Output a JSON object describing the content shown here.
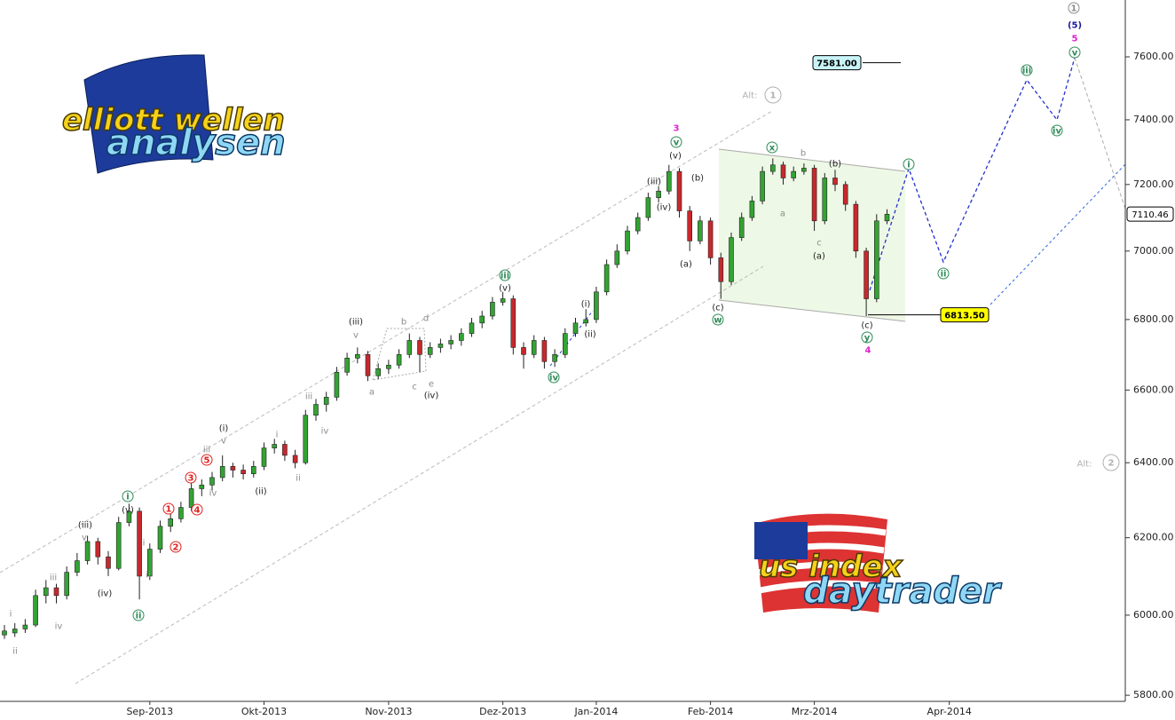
{
  "chart_data": {
    "type": "candlestick",
    "categories": [
      null,
      null,
      null,
      null,
      null,
      null,
      null,
      null,
      null,
      null,
      null,
      null,
      null,
      null,
      "Sep-2013",
      null,
      null,
      null,
      null,
      null,
      null,
      null,
      null,
      null,
      null,
      "Okt-2013",
      null,
      null,
      null,
      null,
      null,
      null,
      null,
      null,
      null,
      null,
      null,
      "Nov-2013",
      null,
      null,
      null,
      null,
      null,
      null,
      null,
      null,
      null,
      null,
      "Dez-2013",
      null,
      null,
      null,
      null,
      null,
      null,
      null,
      null,
      "Jan-2014",
      null,
      null,
      null,
      null,
      null,
      null,
      null,
      null,
      null,
      null,
      "Feb-2014",
      null,
      null,
      null,
      null,
      null,
      null,
      null,
      null,
      null,
      "Mrz-2014",
      null,
      null,
      null,
      null,
      null,
      null,
      null,
      null,
      null,
      null,
      null,
      null,
      "Apr-2014"
    ],
    "ohlc": [
      [
        5950,
        5975,
        5940,
        5960
      ],
      [
        5955,
        5980,
        5945,
        5965
      ],
      [
        5965,
        5990,
        5955,
        5975
      ],
      [
        5975,
        6065,
        5970,
        6050
      ],
      [
        6050,
        6090,
        6030,
        6070
      ],
      [
        6070,
        6080,
        6030,
        6050
      ],
      [
        6050,
        6125,
        6040,
        6110
      ],
      [
        6110,
        6160,
        6100,
        6140
      ],
      [
        6140,
        6205,
        6130,
        6190
      ],
      [
        6190,
        6200,
        6130,
        6150
      ],
      [
        6150,
        6165,
        6100,
        6120
      ],
      [
        6120,
        6255,
        6115,
        6240
      ],
      [
        6240,
        6290,
        6230,
        6270
      ],
      [
        6270,
        6280,
        6040,
        6100
      ],
      [
        6100,
        6185,
        6090,
        6170
      ],
      [
        6170,
        6245,
        6160,
        6230
      ],
      [
        6230,
        6265,
        6215,
        6250
      ],
      [
        6250,
        6295,
        6240,
        6280
      ],
      [
        6280,
        6345,
        6270,
        6330
      ],
      [
        6330,
        6355,
        6310,
        6340
      ],
      [
        6340,
        6375,
        6325,
        6360
      ],
      [
        6360,
        6420,
        6350,
        6390
      ],
      [
        6390,
        6400,
        6360,
        6380
      ],
      [
        6380,
        6395,
        6355,
        6370
      ],
      [
        6370,
        6405,
        6360,
        6390
      ],
      [
        6390,
        6455,
        6380,
        6440
      ],
      [
        6440,
        6465,
        6425,
        6450
      ],
      [
        6450,
        6460,
        6405,
        6420
      ],
      [
        6420,
        6435,
        6385,
        6400
      ],
      [
        6400,
        6545,
        6395,
        6530
      ],
      [
        6530,
        6575,
        6515,
        6560
      ],
      [
        6560,
        6595,
        6540,
        6580
      ],
      [
        6580,
        6665,
        6570,
        6650
      ],
      [
        6650,
        6705,
        6640,
        6690
      ],
      [
        6690,
        6720,
        6675,
        6700
      ],
      [
        6700,
        6710,
        6625,
        6640
      ],
      [
        6640,
        6675,
        6630,
        6660
      ],
      [
        6660,
        6685,
        6645,
        6670
      ],
      [
        6670,
        6715,
        6660,
        6700
      ],
      [
        6700,
        6760,
        6690,
        6740
      ],
      [
        6740,
        6750,
        6650,
        6700
      ],
      [
        6700,
        6735,
        6690,
        6720
      ],
      [
        6720,
        6745,
        6705,
        6730
      ],
      [
        6730,
        6755,
        6715,
        6740
      ],
      [
        6740,
        6775,
        6725,
        6760
      ],
      [
        6760,
        6805,
        6750,
        6790
      ],
      [
        6790,
        6825,
        6775,
        6810
      ],
      [
        6810,
        6865,
        6800,
        6850
      ],
      [
        6850,
        6880,
        6840,
        6860
      ],
      [
        6860,
        6870,
        6700,
        6720
      ],
      [
        6720,
        6735,
        6660,
        6700
      ],
      [
        6700,
        6755,
        6690,
        6740
      ],
      [
        6740,
        6750,
        6660,
        6680
      ],
      [
        6680,
        6715,
        6665,
        6700
      ],
      [
        6700,
        6775,
        6690,
        6760
      ],
      [
        6760,
        6805,
        6750,
        6790
      ],
      [
        6790,
        6830,
        6780,
        6800
      ],
      [
        6800,
        6895,
        6790,
        6880
      ],
      [
        6880,
        6975,
        6870,
        6960
      ],
      [
        6960,
        7020,
        6950,
        7000
      ],
      [
        7000,
        7075,
        6990,
        7060
      ],
      [
        7060,
        7115,
        7050,
        7100
      ],
      [
        7100,
        7175,
        7090,
        7160
      ],
      [
        7160,
        7195,
        7145,
        7180
      ],
      [
        7180,
        7260,
        7170,
        7240
      ],
      [
        7240,
        7250,
        7100,
        7120
      ],
      [
        7120,
        7135,
        7000,
        7030
      ],
      [
        7030,
        7105,
        7020,
        7090
      ],
      [
        7090,
        7100,
        6960,
        6980
      ],
      [
        6980,
        6995,
        6860,
        6910
      ],
      [
        6910,
        7055,
        6900,
        7040
      ],
      [
        7040,
        7115,
        7030,
        7100
      ],
      [
        7100,
        7165,
        7090,
        7150
      ],
      [
        7150,
        7255,
        7140,
        7240
      ],
      [
        7240,
        7280,
        7230,
        7260
      ],
      [
        7260,
        7270,
        7200,
        7220
      ],
      [
        7220,
        7255,
        7210,
        7240
      ],
      [
        7240,
        7265,
        7230,
        7250
      ],
      [
        7250,
        7260,
        7060,
        7090
      ],
      [
        7090,
        7235,
        7080,
        7220
      ],
      [
        7220,
        7245,
        7180,
        7200
      ],
      [
        7200,
        7210,
        7120,
        7140
      ],
      [
        7140,
        7150,
        6980,
        7000
      ],
      [
        7000,
        7010,
        6810,
        6860
      ],
      [
        6860,
        7110,
        6850,
        7090
      ],
      [
        7090,
        7125,
        7080,
        7110
      ],
      null,
      null,
      null,
      null,
      null,
      null
    ],
    "up_color": "#33a333",
    "down_color": "#c8282d",
    "log_scale": true,
    "ylim": [
      5785,
      7785
    ],
    "yticks": [
      {
        "value": 5800,
        "label": "5800.00"
      },
      {
        "value": 6000,
        "label": "6000.00"
      },
      {
        "value": 6200,
        "label": "6200.00"
      },
      {
        "value": 6400,
        "label": "6400.00"
      },
      {
        "value": 6600,
        "label": "6600.00"
      },
      {
        "value": 6800,
        "label": "6800.00"
      },
      {
        "value": 7000,
        "label": "7000.00"
      },
      {
        "value": 7200,
        "label": "7200.00"
      },
      {
        "value": 7400,
        "label": "7400.00"
      },
      {
        "value": 7600,
        "label": "7600.00"
      }
    ],
    "price_labels": [
      {
        "value": 7581,
        "label": "7581.00",
        "color": "#c8f4f8"
      },
      {
        "value": 6813.5,
        "label": "6813.50",
        "color": "#ffff00"
      },
      {
        "value": 7110.46,
        "label": "7110.46",
        "color": "#ffffff"
      }
    ],
    "annotations": [
      {
        "text": "ii",
        "color": "#8c8c8c"
      },
      {
        "text": "i",
        "color": "#8c8c8c"
      },
      {
        "text": "iii",
        "color": "#8c8c8c"
      },
      {
        "text": "iv",
        "color": "#8c8c8c"
      },
      {
        "text": "v",
        "color": "#8c8c8c"
      },
      {
        "text": "(iii)",
        "color": "#222222"
      },
      {
        "text": "(iv)",
        "color": "#222222"
      },
      {
        "text": "ii",
        "color": "#2e8b57",
        "circle": true
      },
      {
        "text": "i",
        "color": "#8c8c8c"
      },
      {
        "text": "ii",
        "color": "#8c8c8c"
      },
      {
        "text": "(v)",
        "color": "#222222"
      },
      {
        "text": "i",
        "color": "#2e8b57",
        "circle": true
      },
      {
        "text": "1",
        "color": "#e02020",
        "circle": true
      },
      {
        "text": "2",
        "color": "#e02020",
        "circle": true
      },
      {
        "text": "3",
        "color": "#e02020",
        "circle": true
      },
      {
        "text": "4",
        "color": "#e02020",
        "circle": true
      },
      {
        "text": "5",
        "color": "#e02020",
        "circle": true
      },
      {
        "text": "iii",
        "color": "#8c8c8c"
      },
      {
        "text": "iv",
        "color": "#8c8c8c"
      },
      {
        "text": "v",
        "color": "#8c8c8c"
      },
      {
        "text": "(i)",
        "color": "#222222"
      },
      {
        "text": "(ii)",
        "color": "#222222"
      },
      {
        "text": "i",
        "color": "#8c8c8c"
      },
      {
        "text": "ii",
        "color": "#8c8c8c"
      },
      {
        "text": "iii",
        "color": "#8c8c8c"
      },
      {
        "text": "iv",
        "color": "#8c8c8c"
      },
      {
        "text": "(iii)",
        "color": "#222222"
      },
      {
        "text": "v",
        "color": "#8c8c8c"
      },
      {
        "text": "a",
        "color": "#8c8c8c"
      },
      {
        "text": "b",
        "color": "#8c8c8c"
      },
      {
        "text": "c",
        "color": "#8c8c8c"
      },
      {
        "text": "d",
        "color": "#8c8c8c"
      },
      {
        "text": "e",
        "color": "#8c8c8c"
      },
      {
        "text": "(iv)",
        "color": "#222222"
      },
      {
        "text": "(v)",
        "color": "#222222"
      },
      {
        "text": "iii",
        "color": "#2e8b57",
        "circle": true
      },
      {
        "text": "iv",
        "color": "#2e8b57",
        "circle": true
      },
      {
        "text": "(i)",
        "color": "#222222"
      },
      {
        "text": "(ii)",
        "color": "#222222"
      },
      {
        "text": "(iii)",
        "color": "#222222"
      },
      {
        "text": "(iv)",
        "color": "#222222"
      },
      {
        "text": "(v)",
        "color": "#222222"
      },
      {
        "text": "v",
        "color": "#2e8b57",
        "circle": true
      },
      {
        "text": "3",
        "color": "#e020d0"
      },
      {
        "text": "(b)",
        "color": "#222222"
      },
      {
        "text": "(a)",
        "color": "#222222"
      },
      {
        "text": "(c)",
        "color": "#222222"
      },
      {
        "text": "w",
        "color": "#2e8b57",
        "circle": true
      },
      {
        "text": "x",
        "color": "#2e8b57",
        "circle": true
      },
      {
        "text": "b",
        "color": "#8c8c8c"
      },
      {
        "text": "a",
        "color": "#8c8c8c"
      },
      {
        "text": "(b)",
        "color": "#222222"
      },
      {
        "text": "c",
        "color": "#8c8c8c"
      },
      {
        "text": "(a)",
        "color": "#222222"
      },
      {
        "text": "(c)",
        "color": "#222222"
      },
      {
        "text": "y",
        "color": "#2e8b57",
        "circle": true
      },
      {
        "text": "4",
        "color": "#e020d0"
      },
      {
        "text": "i",
        "color": "#2e8b57",
        "circle": true
      },
      {
        "text": "ii",
        "color": "#2e8b57",
        "circle": true
      },
      {
        "text": "iii",
        "color": "#2e8b57",
        "circle": true
      },
      {
        "text": "iv",
        "color": "#2e8b57",
        "circle": true
      },
      {
        "text": "v",
        "color": "#2e8b57",
        "circle": true
      },
      {
        "text": "5",
        "color": "#e020d0"
      },
      {
        "text": "(5)",
        "color": "#1a1aa0"
      },
      {
        "text": "1",
        "color": "#8c8c8c",
        "circle": true
      },
      {
        "text": "Alt:",
        "color": "#b0b0b0"
      },
      {
        "text": "1",
        "color": "#b0b0b0",
        "circle": true
      },
      {
        "text": "Alt:",
        "color": "#b0b0b0"
      },
      {
        "text": "2",
        "color": "#b0b0b0",
        "circle": true
      }
    ]
  },
  "logos": [
    "elliott wellen",
    "analysen",
    "us index",
    "daytrader"
  ]
}
